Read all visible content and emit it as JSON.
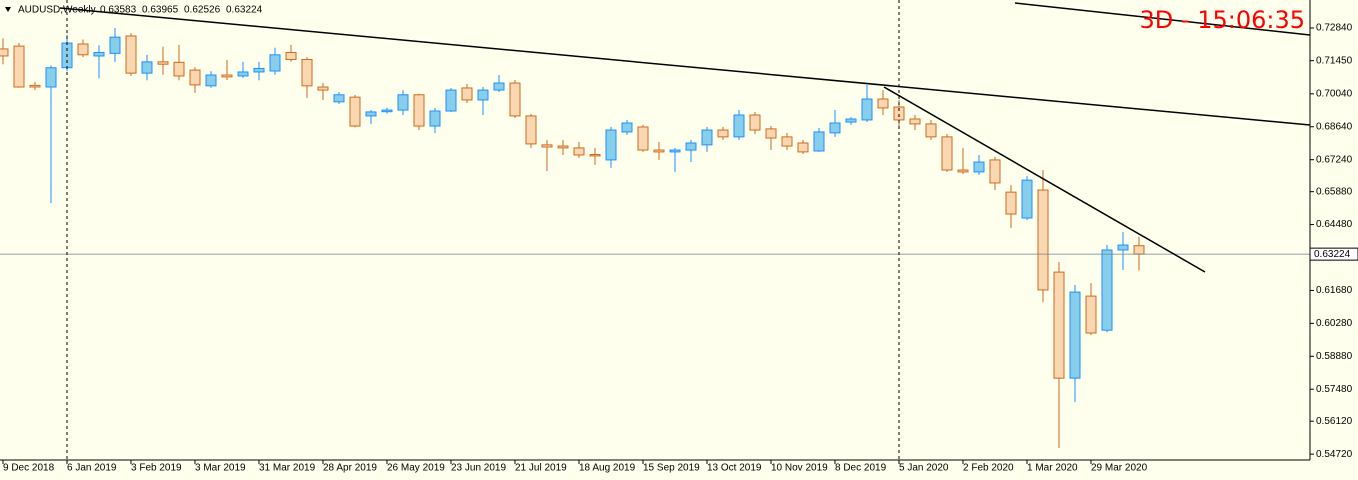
{
  "chart_data": {
    "type": "candlestick",
    "symbol": "AUDUSD,Weekly",
    "timer": "3D - 15:06:35",
    "categories": [
      "9 Dec 2018",
      null,
      null,
      null,
      "6 Jan 2019",
      null,
      null,
      null,
      "3 Feb 2019",
      null,
      null,
      null,
      "3 Mar 2019",
      null,
      null,
      null,
      "31 Mar 2019",
      null,
      null,
      null,
      "28 Apr 2019",
      null,
      null,
      null,
      "26 May 2019",
      null,
      null,
      null,
      "23 Jun 2019",
      null,
      null,
      null,
      "21 Jul 2019",
      null,
      null,
      null,
      "18 Aug 2019",
      null,
      null,
      null,
      "15 Sep 2019",
      null,
      null,
      null,
      "13 Oct 2019",
      null,
      null,
      null,
      "10 Nov 2019",
      null,
      null,
      null,
      "8 Dec 2019",
      null,
      null,
      null,
      "5 Jan 2020",
      null,
      null,
      null,
      "2 Feb 2020",
      null,
      null,
      null,
      "1 Mar 2020",
      null,
      null,
      null,
      "29 Mar 2020",
      null,
      null,
      null
    ],
    "open": [
      0.7195,
      0.7207,
      0.704,
      0.7033,
      0.7115,
      0.7216,
      0.7165,
      0.7176,
      0.725,
      0.7092,
      0.714,
      0.7138,
      0.7105,
      0.7038,
      0.7084,
      0.708,
      0.7097,
      0.7101,
      0.718,
      0.715,
      0.7033,
      0.697,
      0.699,
      0.691,
      0.6928,
      0.6935,
      0.7,
      0.6867,
      0.6931,
      0.7029,
      0.6978,
      0.702,
      0.705,
      0.691,
      0.6787,
      0.6782,
      0.6774,
      0.6746,
      0.6723,
      0.6842,
      0.6863,
      0.6765,
      0.6757,
      0.6765,
      0.6787,
      0.685,
      0.6821,
      0.6914,
      0.6855,
      0.6821,
      0.6795,
      0.6761,
      0.6838,
      0.6884,
      0.6893,
      0.6982,
      0.6948,
      0.6897,
      0.6876,
      0.6821,
      0.668,
      0.6672,
      0.6723,
      0.6586,
      0.6476,
      0.6595,
      0.6246,
      0.5795,
      0.6144,
      0.5999,
      0.634,
      0.63583
    ],
    "high": [
      0.724,
      0.722,
      0.7055,
      0.7125,
      0.7255,
      0.7235,
      0.721,
      0.7284,
      0.7262,
      0.717,
      0.7205,
      0.7212,
      0.7117,
      0.71,
      0.7148,
      0.714,
      0.714,
      0.72,
      0.7212,
      0.716,
      0.705,
      0.7012,
      0.6999,
      0.6935,
      0.6945,
      0.702,
      0.7004,
      0.6944,
      0.7029,
      0.7046,
      0.7033,
      0.7084,
      0.7063,
      0.6918,
      0.6808,
      0.6808,
      0.6799,
      0.6774,
      0.6863,
      0.6893,
      0.6872,
      0.6799,
      0.6774,
      0.6808,
      0.6863,
      0.6863,
      0.6935,
      0.6927,
      0.6867,
      0.6838,
      0.6808,
      0.6859,
      0.6935,
      0.6905,
      0.7042,
      0.702,
      0.6978,
      0.6914,
      0.6893,
      0.6833,
      0.6774,
      0.6744,
      0.6736,
      0.6616,
      0.6654,
      0.668,
      0.6289,
      0.6191,
      0.6199,
      0.6361,
      0.6416,
      0.63965
    ],
    "low": [
      0.713,
      0.703,
      0.702,
      0.654,
      0.71,
      0.716,
      0.707,
      0.714,
      0.708,
      0.7062,
      0.7085,
      0.7062,
      0.7008,
      0.703,
      0.7063,
      0.7072,
      0.7062,
      0.7085,
      0.714,
      0.6987,
      0.6978,
      0.696,
      0.6862,
      0.6875,
      0.692,
      0.6914,
      0.685,
      0.6837,
      0.6927,
      0.6965,
      0.6914,
      0.7012,
      0.6901,
      0.6774,
      0.6676,
      0.6744,
      0.6731,
      0.6702,
      0.6689,
      0.6829,
      0.6757,
      0.6723,
      0.6672,
      0.6714,
      0.6757,
      0.6808,
      0.6808,
      0.6833,
      0.6765,
      0.6765,
      0.6748,
      0.6757,
      0.6821,
      0.6872,
      0.6884,
      0.6914,
      0.6859,
      0.685,
      0.6808,
      0.6672,
      0.6663,
      0.6659,
      0.6595,
      0.6433,
      0.6467,
      0.6118,
      0.5498,
      0.5694,
      0.5978,
      0.5991,
      0.6255,
      0.62526
    ],
    "close": [
      0.7165,
      0.7033,
      0.7033,
      0.7115,
      0.722,
      0.717,
      0.718,
      0.7245,
      0.7092,
      0.714,
      0.713,
      0.708,
      0.7042,
      0.7084,
      0.7076,
      0.7097,
      0.7112,
      0.717,
      0.715,
      0.7038,
      0.702,
      0.7,
      0.6867,
      0.6927,
      0.6935,
      0.7,
      0.6867,
      0.6931,
      0.702,
      0.6978,
      0.702,
      0.705,
      0.691,
      0.6791,
      0.6778,
      0.6774,
      0.6744,
      0.674,
      0.685,
      0.688,
      0.6765,
      0.6757,
      0.6765,
      0.6795,
      0.685,
      0.6821,
      0.6914,
      0.685,
      0.6816,
      0.6782,
      0.6757,
      0.6842,
      0.688,
      0.6897,
      0.6982,
      0.6944,
      0.6893,
      0.6876,
      0.6821,
      0.668,
      0.6672,
      0.6714,
      0.6625,
      0.6493,
      0.6637,
      0.617,
      0.5795,
      0.6161,
      0.5987,
      0.634,
      0.6361,
      0.63224
    ],
    "up_color": "#87ceeb",
    "up_edge": "#1e90ff",
    "down_color": "#f9d7b0",
    "down_edge": "#d2691e",
    "ylim": [
      0.5447,
      0.7403
    ],
    "yticks": [
      {
        "value": 0.7284,
        "label": "0.72840"
      },
      {
        "value": 0.7145,
        "label": "0.71450"
      },
      {
        "value": 0.7004,
        "label": "0.70040"
      },
      {
        "value": 0.6864,
        "label": "0.68640"
      },
      {
        "value": 0.6724,
        "label": "0.67240"
      },
      {
        "value": 0.6588,
        "label": "0.65880"
      },
      {
        "value": 0.6448,
        "label": "0.64480"
      },
      {
        "value": 0.6168,
        "label": "0.61680"
      },
      {
        "value": 0.6028,
        "label": "0.60280"
      },
      {
        "value": 0.5888,
        "label": "0.58880"
      },
      {
        "value": 0.5748,
        "label": "0.57480"
      },
      {
        "value": 0.5612,
        "label": "0.56120"
      },
      {
        "value": 0.5472,
        "label": "0.54720"
      }
    ],
    "grid": false
  }
}
